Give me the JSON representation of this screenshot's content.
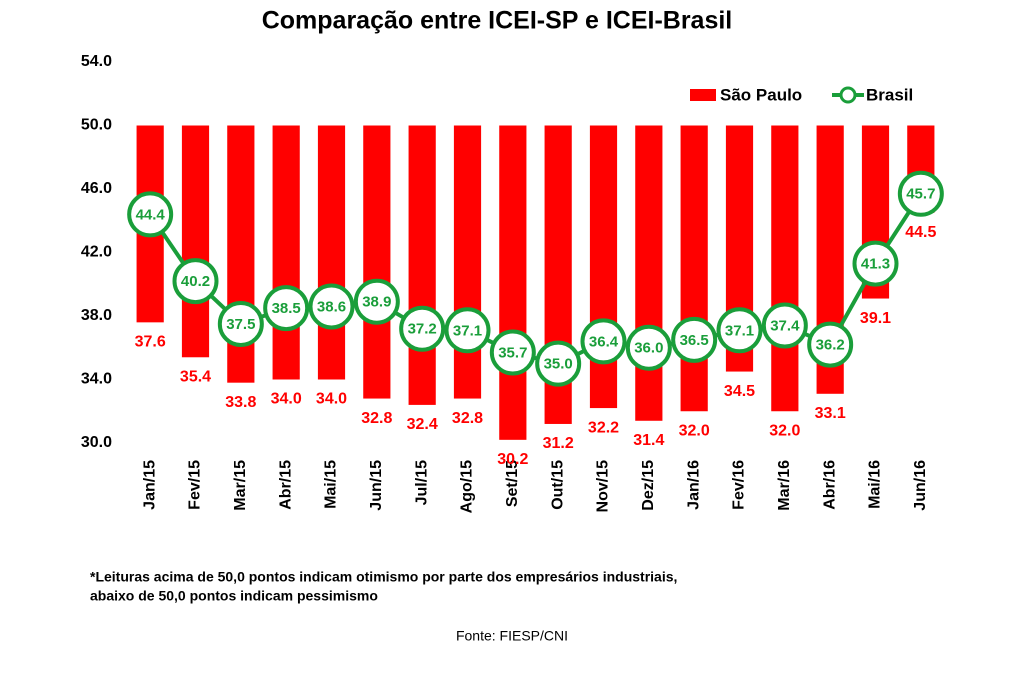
{
  "chart_data": {
    "type": "bar_line",
    "title": "Comparação entre ICEI-SP e ICEI-Brasil",
    "categories": [
      "Jan/15",
      "Fev/15",
      "Mar/15",
      "Abr/15",
      "Mai/15",
      "Jun/15",
      "Jul/15",
      "Ago/15",
      "Set/15",
      "Out/15",
      "Nov/15",
      "Dez/15",
      "Jan/16",
      "Fev/16",
      "Mar/16",
      "Abr/16",
      "Mai/16",
      "Jun/16"
    ],
    "series": [
      {
        "name": "São Paulo",
        "type": "bar",
        "color": "#ff0000",
        "values": [
          37.6,
          35.4,
          33.8,
          34.0,
          34.0,
          32.8,
          32.4,
          32.8,
          30.2,
          31.2,
          32.2,
          31.4,
          32.0,
          34.5,
          32.0,
          33.1,
          39.1,
          44.5
        ],
        "value_labels": [
          "37.6",
          "35.4",
          "33.8",
          "34.0",
          "34.0",
          "32.8",
          "32.4",
          "32.8",
          "30.2",
          "31.2",
          "32.2",
          "31.4",
          "32.0",
          "34.5",
          "32.0",
          "33.1",
          "39.1",
          "44.5"
        ]
      },
      {
        "name": "Brasil",
        "type": "line",
        "color": "#1a9e3a",
        "values": [
          44.4,
          40.2,
          37.5,
          38.5,
          38.6,
          38.9,
          37.2,
          37.1,
          35.7,
          35.0,
          36.4,
          36.0,
          36.5,
          37.1,
          37.4,
          36.2,
          41.3,
          45.7
        ],
        "value_labels": [
          "44.4",
          "40.2",
          "37.5",
          "38.5",
          "38.6",
          "38.9",
          "37.2",
          "37.1",
          "35.7",
          "35.0",
          "36.4",
          "36.0",
          "36.5",
          "37.1",
          "37.4",
          "36.2",
          "41.3",
          "45.7"
        ]
      }
    ],
    "bar_baseline": 50,
    "ylim": [
      30,
      54
    ],
    "yticks": [
      {
        "value": 30,
        "label": "30.0"
      },
      {
        "value": 34,
        "label": "34.0"
      },
      {
        "value": 38,
        "label": "38.0"
      },
      {
        "value": 42,
        "label": "42.0"
      },
      {
        "value": 46,
        "label": "46.0"
      },
      {
        "value": 50,
        "label": "50.0"
      },
      {
        "value": 54,
        "label": "54.0"
      }
    ],
    "grid": false,
    "legend": "top-right",
    "notes": [
      "*Leituras acima de 50,0 pontos indicam otimismo por parte dos empresários industriais,",
      "abaixo de 50,0 pontos indicam pessimismo"
    ],
    "source": "Fonte: FIESP/CNI"
  }
}
